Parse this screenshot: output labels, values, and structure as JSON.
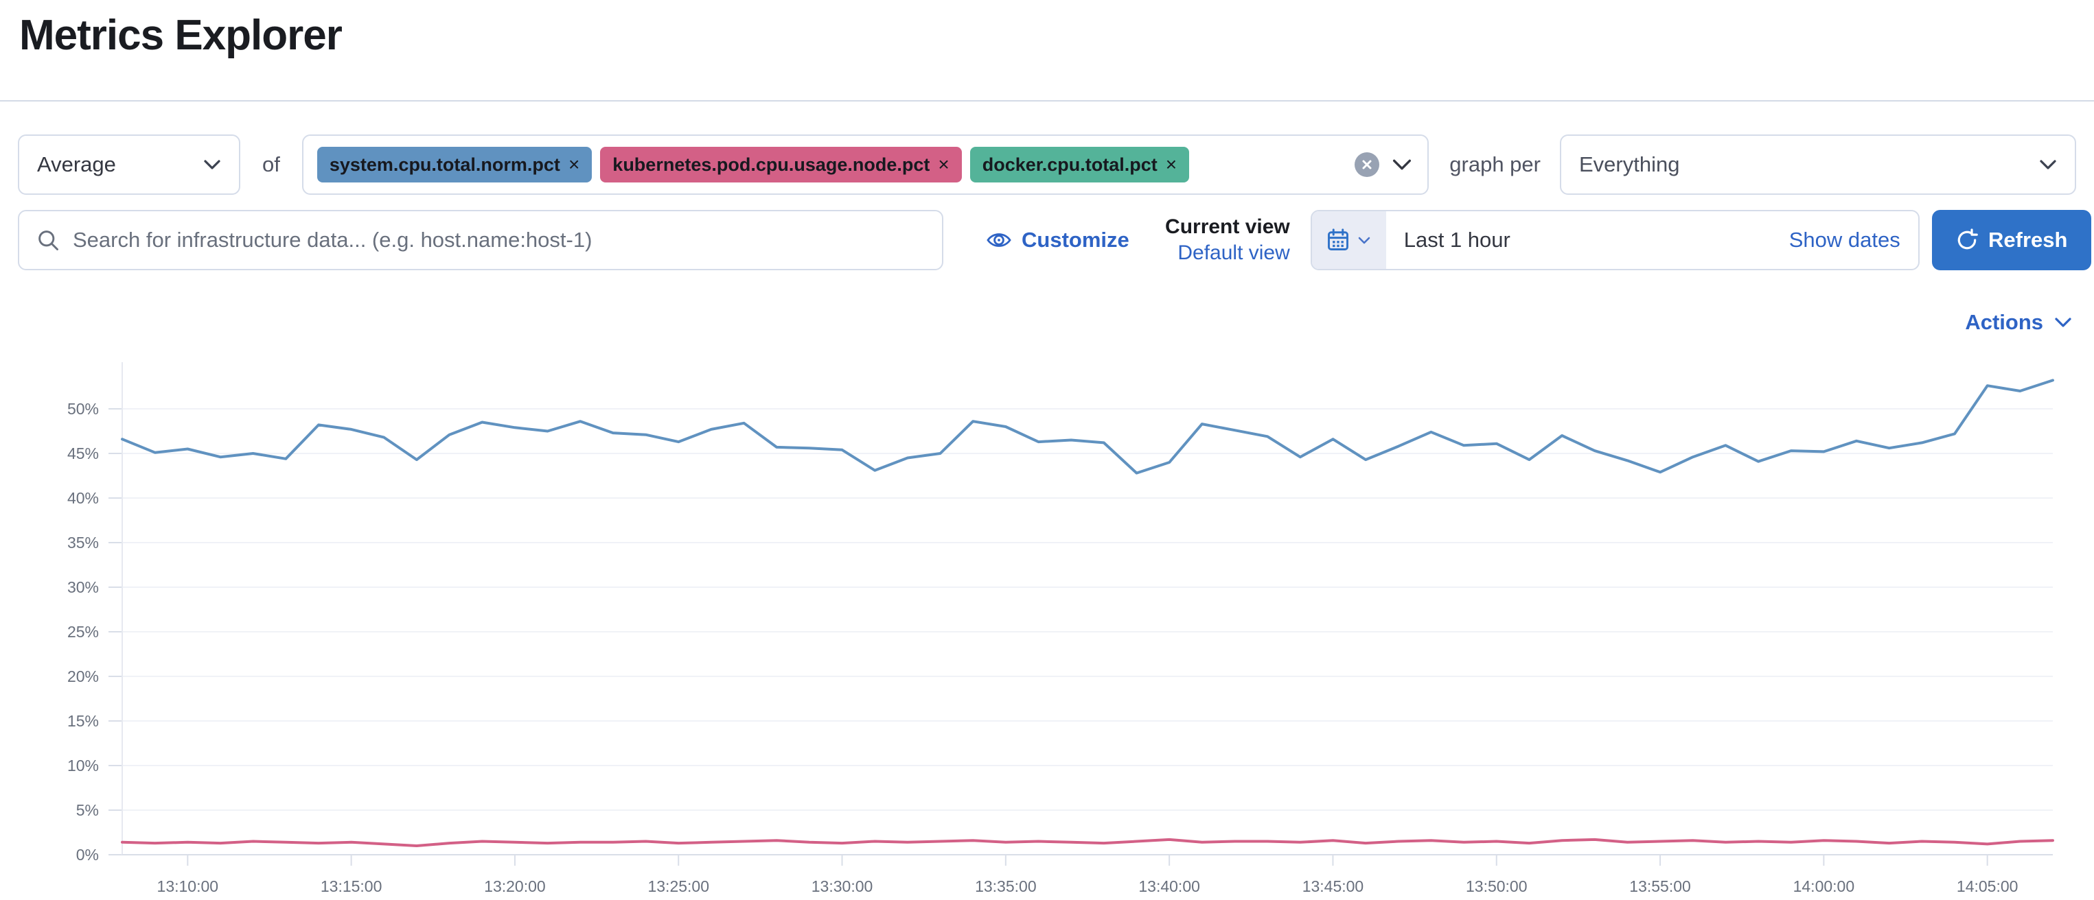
{
  "page": {
    "title": "Metrics Explorer"
  },
  "toolbar": {
    "aggregation": {
      "value": "Average"
    },
    "of_label": "of",
    "metrics": [
      {
        "label": "system.cpu.total.norm.pct",
        "color": "#6092C0"
      },
      {
        "label": "kubernetes.pod.cpu.usage.node.pct",
        "color": "#D36086"
      },
      {
        "label": "docker.cpu.total.pct",
        "color": "#54B399"
      }
    ],
    "remove_glyph": "×",
    "graph_per_label": "graph per",
    "group_by": {
      "value": "Everything"
    }
  },
  "search": {
    "placeholder": "Search for infrastructure data... (e.g. host.name:host-1)"
  },
  "view_controls": {
    "customize_label": "Customize",
    "current_view_label": "Current view",
    "default_view_label": "Default view"
  },
  "datepicker": {
    "value": "Last 1 hour",
    "show_dates_label": "Show dates",
    "refresh_label": "Refresh"
  },
  "actions_label": "Actions",
  "colors": {
    "primary_button": "#2f72c8",
    "link_blue": "#2e63c5",
    "axis_text": "#69707d",
    "grid_line": "#f0f2f7",
    "axis_line": "#d9dee8"
  },
  "chart_data": {
    "type": "line",
    "title": "",
    "xlabel": "",
    "ylabel": "",
    "ylabel_format": "percent",
    "ylim": [
      0,
      55
    ],
    "yticks": [
      0,
      5,
      10,
      15,
      20,
      25,
      30,
      35,
      40,
      45,
      50
    ],
    "grid": true,
    "legend": "none",
    "x": [
      "13:08:00",
      "13:09:00",
      "13:10:00",
      "13:11:00",
      "13:12:00",
      "13:13:00",
      "13:14:00",
      "13:15:00",
      "13:16:00",
      "13:17:00",
      "13:18:00",
      "13:19:00",
      "13:20:00",
      "13:21:00",
      "13:22:00",
      "13:23:00",
      "13:24:00",
      "13:25:00",
      "13:26:00",
      "13:27:00",
      "13:28:00",
      "13:29:00",
      "13:30:00",
      "13:31:00",
      "13:32:00",
      "13:33:00",
      "13:34:00",
      "13:35:00",
      "13:36:00",
      "13:37:00",
      "13:38:00",
      "13:39:00",
      "13:40:00",
      "13:41:00",
      "13:42:00",
      "13:43:00",
      "13:44:00",
      "13:45:00",
      "13:46:00",
      "13:47:00",
      "13:48:00",
      "13:49:00",
      "13:50:00",
      "13:51:00",
      "13:52:00",
      "13:53:00",
      "13:54:00",
      "13:55:00",
      "13:56:00",
      "13:57:00",
      "13:58:00",
      "13:59:00",
      "14:00:00",
      "14:01:00",
      "14:02:00",
      "14:03:00",
      "14:04:00",
      "14:05:00",
      "14:06:00",
      "14:07:00"
    ],
    "xtick_labels": [
      "13:10:00",
      "13:15:00",
      "13:20:00",
      "13:25:00",
      "13:30:00",
      "13:35:00",
      "13:40:00",
      "13:45:00",
      "13:50:00",
      "13:55:00",
      "14:00:00",
      "14:05:00"
    ],
    "series": [
      {
        "name": "system.cpu.total.norm.pct (avg)",
        "color": "#6092C0",
        "values": [
          46.6,
          45.1,
          45.5,
          44.6,
          45.0,
          44.4,
          48.2,
          47.7,
          46.8,
          44.3,
          47.1,
          48.5,
          47.9,
          47.5,
          48.6,
          47.3,
          47.1,
          46.3,
          47.7,
          48.4,
          45.7,
          45.6,
          45.4,
          43.1,
          44.5,
          45.0,
          48.6,
          48.0,
          46.3,
          46.5,
          46.2,
          42.8,
          44.0,
          48.3,
          47.6,
          46.9,
          44.6,
          46.6,
          44.3,
          45.8,
          47.4,
          45.9,
          46.1,
          44.3,
          47.0,
          45.3,
          44.2,
          42.9,
          44.6,
          45.9,
          44.1,
          45.3,
          45.2,
          46.4,
          45.6,
          46.2,
          47.2,
          52.6,
          52.0,
          53.2
        ]
      },
      {
        "name": "kubernetes.pod.cpu.usage.node.pct (avg)",
        "color": "#D36086",
        "values": [
          1.4,
          1.3,
          1.4,
          1.3,
          1.5,
          1.4,
          1.3,
          1.4,
          1.2,
          1.0,
          1.3,
          1.5,
          1.4,
          1.3,
          1.4,
          1.4,
          1.5,
          1.3,
          1.4,
          1.5,
          1.6,
          1.4,
          1.3,
          1.5,
          1.4,
          1.5,
          1.6,
          1.4,
          1.5,
          1.4,
          1.3,
          1.5,
          1.7,
          1.4,
          1.5,
          1.5,
          1.4,
          1.6,
          1.3,
          1.5,
          1.6,
          1.4,
          1.5,
          1.3,
          1.6,
          1.7,
          1.4,
          1.5,
          1.6,
          1.4,
          1.5,
          1.4,
          1.6,
          1.5,
          1.3,
          1.5,
          1.4,
          1.2,
          1.5,
          1.6
        ]
      }
    ]
  }
}
